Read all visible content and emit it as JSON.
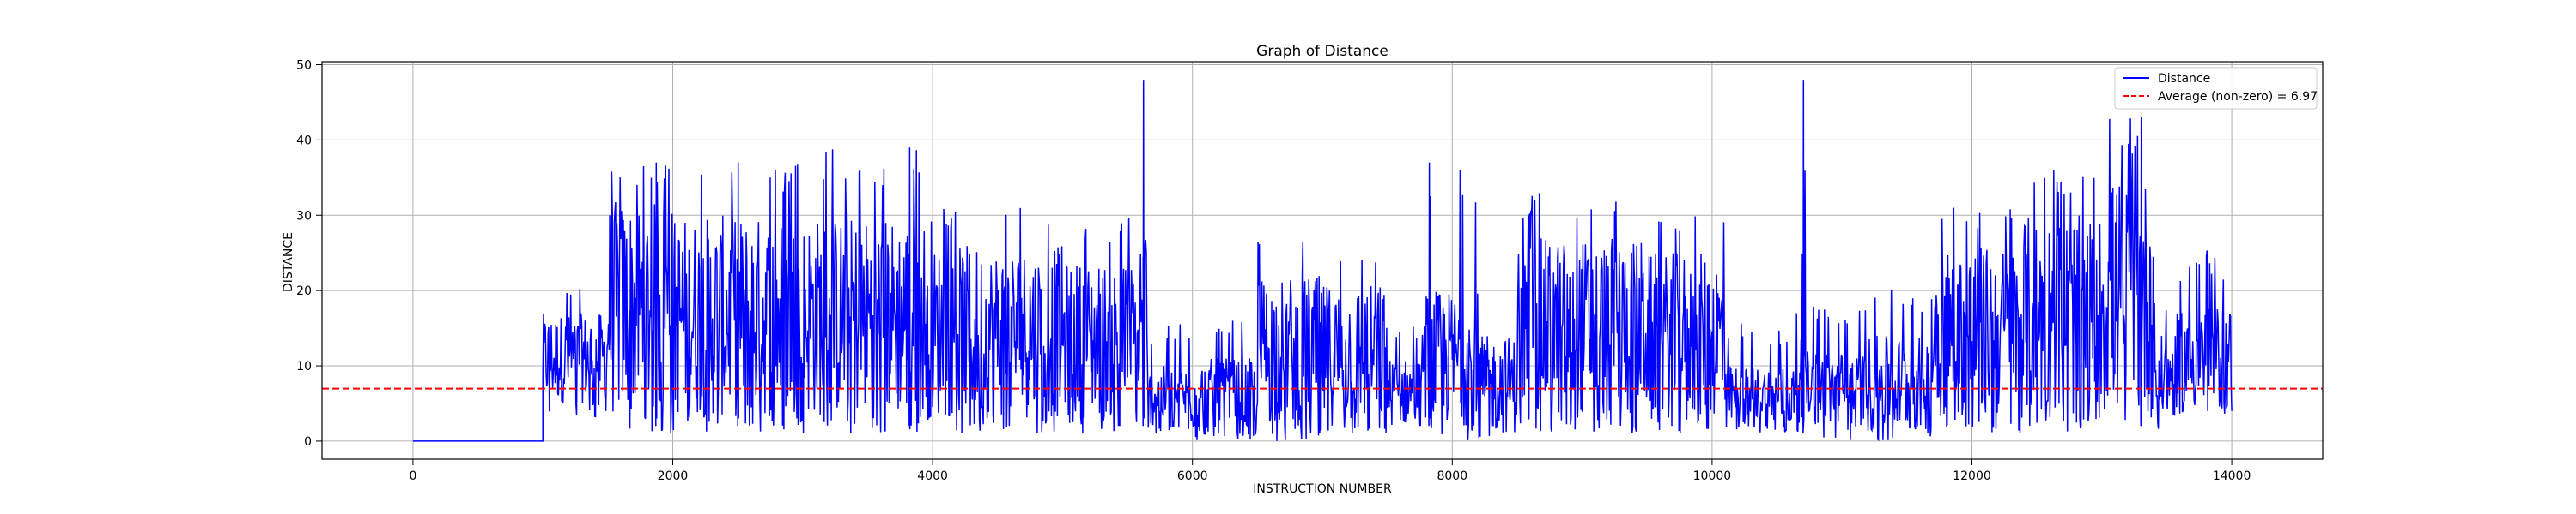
{
  "chart_data": {
    "type": "line",
    "title": "Graph of Distance",
    "xlabel": "INSTRUCTION NUMBER",
    "ylabel": "DISTANCE",
    "xlim": [
      -700,
      14700
    ],
    "ylim": [
      -2.4,
      50.4
    ],
    "xticks": [
      0,
      2000,
      4000,
      6000,
      8000,
      10000,
      12000,
      14000
    ],
    "yticks": [
      0,
      10,
      20,
      30,
      40,
      50
    ],
    "grid": true,
    "legend_position": "top-right",
    "series": [
      {
        "name": "Distance",
        "color": "#0000ff",
        "style": "solid",
        "x": [
          0,
          1000
        ],
        "y": [
          0,
          0
        ],
        "segments": [
          {
            "x": [
              1000,
              1500
            ],
            "min": 3,
            "max": 21,
            "typical": [
              5,
              17
            ]
          },
          {
            "x": [
              1500,
              2000
            ],
            "min": 1,
            "max": 37,
            "typical": [
              3,
              32
            ]
          },
          {
            "x": [
              2000,
              3000
            ],
            "min": 1,
            "max": 37,
            "typical": [
              3,
              30
            ]
          },
          {
            "x": [
              3000,
              4000
            ],
            "min": 1,
            "max": 39,
            "typical": [
              3,
              30
            ]
          },
          {
            "x": [
              4000,
              5000
            ],
            "min": 1,
            "max": 31,
            "typical": [
              3,
              26
            ]
          },
          {
            "x": [
              5000,
              5600
            ],
            "min": 1,
            "max": 30,
            "typical": [
              3,
              24
            ]
          },
          {
            "x": [
              5600,
              5650
            ],
            "min": 1,
            "max": 48,
            "typical": [
              3,
              30
            ]
          },
          {
            "x": [
              5650,
              6000
            ],
            "min": 1,
            "max": 16,
            "typical": [
              2,
              10
            ]
          },
          {
            "x": [
              6000,
              6500
            ],
            "min": 0,
            "max": 16,
            "typical": [
              1,
              11
            ]
          },
          {
            "x": [
              6500,
              7000
            ],
            "min": 0,
            "max": 30,
            "typical": [
              2,
              22
            ]
          },
          {
            "x": [
              7000,
              7500
            ],
            "min": 1,
            "max": 27,
            "typical": [
              2,
              21
            ]
          },
          {
            "x": [
              7500,
              7800
            ],
            "min": 1,
            "max": 16,
            "typical": [
              2,
              11
            ]
          },
          {
            "x": [
              7800,
              8200
            ],
            "min": 0,
            "max": 37,
            "typical": [
              2,
              20
            ]
          },
          {
            "x": [
              8200,
              8500
            ],
            "min": 0,
            "max": 21,
            "typical": [
              1,
              14
            ]
          },
          {
            "x": [
              8500,
              9500
            ],
            "min": 1,
            "max": 33,
            "typical": [
              3,
              27
            ]
          },
          {
            "x": [
              9500,
              10100
            ],
            "min": 1,
            "max": 30,
            "typical": [
              3,
              25
            ]
          },
          {
            "x": [
              10100,
              10650
            ],
            "min": 1,
            "max": 16,
            "typical": [
              2,
              10
            ]
          },
          {
            "x": [
              10650,
              10720
            ],
            "min": 1,
            "max": 48,
            "typical": [
              3,
              25
            ]
          },
          {
            "x": [
              10720,
              11200
            ],
            "min": 0,
            "max": 18,
            "typical": [
              2,
              12
            ]
          },
          {
            "x": [
              11200,
              11700
            ],
            "min": 0,
            "max": 21,
            "typical": [
              1,
              14
            ]
          },
          {
            "x": [
              11700,
              12400
            ],
            "min": 1,
            "max": 31,
            "typical": [
              3,
              26
            ]
          },
          {
            "x": [
              12400,
              13000
            ],
            "min": 1,
            "max": 36,
            "typical": [
              3,
              30
            ]
          },
          {
            "x": [
              13000,
              13400
            ],
            "min": 1,
            "max": 43,
            "typical": [
              3,
              35
            ]
          },
          {
            "x": [
              13400,
              13600
            ],
            "min": 1,
            "max": 19,
            "typical": [
              3,
              14
            ]
          },
          {
            "x": [
              13600,
              14000
            ],
            "min": 3,
            "max": 26,
            "typical": [
              4,
              18
            ]
          }
        ],
        "spikes": [
          {
            "x": 5620,
            "y": 48
          },
          {
            "x": 10700,
            "y": 48
          },
          {
            "x": 13300,
            "y": 43
          },
          {
            "x": 3820,
            "y": 39
          },
          {
            "x": 7820,
            "y": 37
          },
          {
            "x": 1870,
            "y": 37
          },
          {
            "x": 2500,
            "y": 37
          }
        ]
      },
      {
        "name": "Average (non-zero) = 6.97",
        "color": "#ff0000",
        "style": "dashed",
        "y_constant": 6.97
      }
    ]
  }
}
